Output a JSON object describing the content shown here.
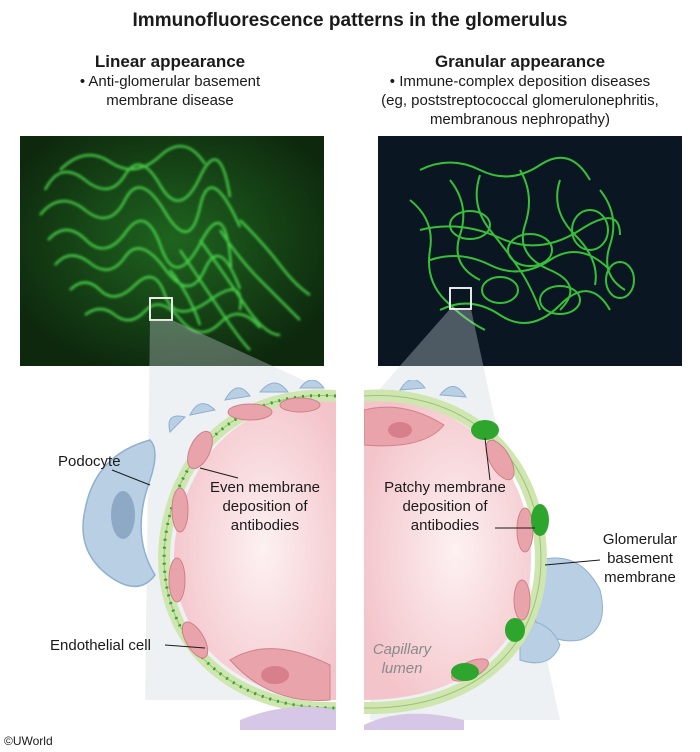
{
  "title": "Immunofluorescence patterns in the glomerulus",
  "left_panel": {
    "heading": "Linear appearance",
    "bullet_line1": "• Anti-glomerular basement",
    "bullet_line2": "membrane disease"
  },
  "right_panel": {
    "heading": "Granular appearance",
    "bullet_line1": "• Immune-complex deposition diseases",
    "bullet_line2": "(eg, poststreptococcal glomerulonephritis,",
    "bullet_line3": "membranous nephropathy)"
  },
  "labels": {
    "podocyte": "Podocyte",
    "even_1": "Even membrane",
    "even_2": "deposition of",
    "even_3": "antibodies",
    "endothelial": "Endothelial cell",
    "patchy_1": "Patchy membrane",
    "patchy_2": "deposition of",
    "patchy_3": "antibodies",
    "gbm_1": "Glomerular",
    "gbm_2": "basement",
    "gbm_3": "membrane",
    "lumen_1": "Capillary",
    "lumen_2": "lumen"
  },
  "copyright": "©UWorld",
  "colors": {
    "fluorescence_green": "#3cd23c",
    "linear_bg": "#0f2a0f",
    "granular_bg": "#0a1520",
    "lumen_pink": "#f6d2d6",
    "endothelial_pink": "#e9a3ab",
    "podocyte_blue": "#b9cfe4",
    "membrane_green": "#cfe6b0",
    "antibody_green": "#2ea62e"
  }
}
